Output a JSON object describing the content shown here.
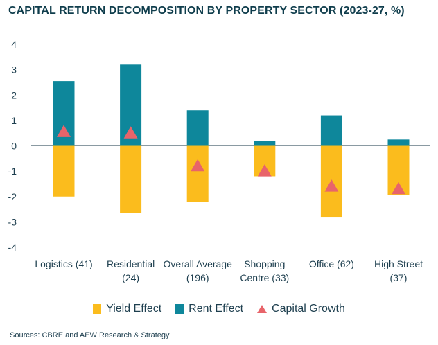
{
  "title": "CAPITAL RETURN DECOMPOSITION BY PROPERTY SECTOR (2023-27, %)",
  "source": "Sources: CBRE and AEW Research & Strategy",
  "colors": {
    "yield": "#fbbc1d",
    "rent": "#0e879b",
    "capital": "#e8646a",
    "axis": "#1e3f4f"
  },
  "legend": {
    "yield": "Yield Effect",
    "rent": "Rent Effect",
    "capital": "Capital Growth"
  },
  "chart_data": {
    "type": "bar",
    "stacked": true,
    "title": "CAPITAL RETURN DECOMPOSITION BY PROPERTY SECTOR (2023-27, %)",
    "categories": [
      [
        "Logistics (41)"
      ],
      [
        "Residential",
        "(24)"
      ],
      [
        "Overall Average",
        "(196)"
      ],
      [
        "Shopping",
        "Centre (33)"
      ],
      [
        "Office (62)"
      ],
      [
        "High Street",
        "(37)"
      ]
    ],
    "series": [
      {
        "name": "Yield Effect",
        "values": [
          -2.0,
          -2.65,
          -2.2,
          -1.2,
          -2.8,
          -1.95
        ]
      },
      {
        "name": "Rent Effect",
        "values": [
          2.55,
          3.2,
          1.4,
          0.2,
          1.2,
          0.25
        ]
      },
      {
        "name": "Capital Growth",
        "marker": "triangle",
        "values": [
          0.55,
          0.5,
          -0.8,
          -1.0,
          -1.6,
          -1.7
        ]
      }
    ],
    "ylim": [
      -4,
      4
    ],
    "yticks": [
      4,
      3,
      2,
      1,
      0,
      -1,
      -2,
      -3,
      -4
    ],
    "xlabel": "",
    "ylabel": "",
    "grid": false,
    "legend_position": "bottom"
  }
}
